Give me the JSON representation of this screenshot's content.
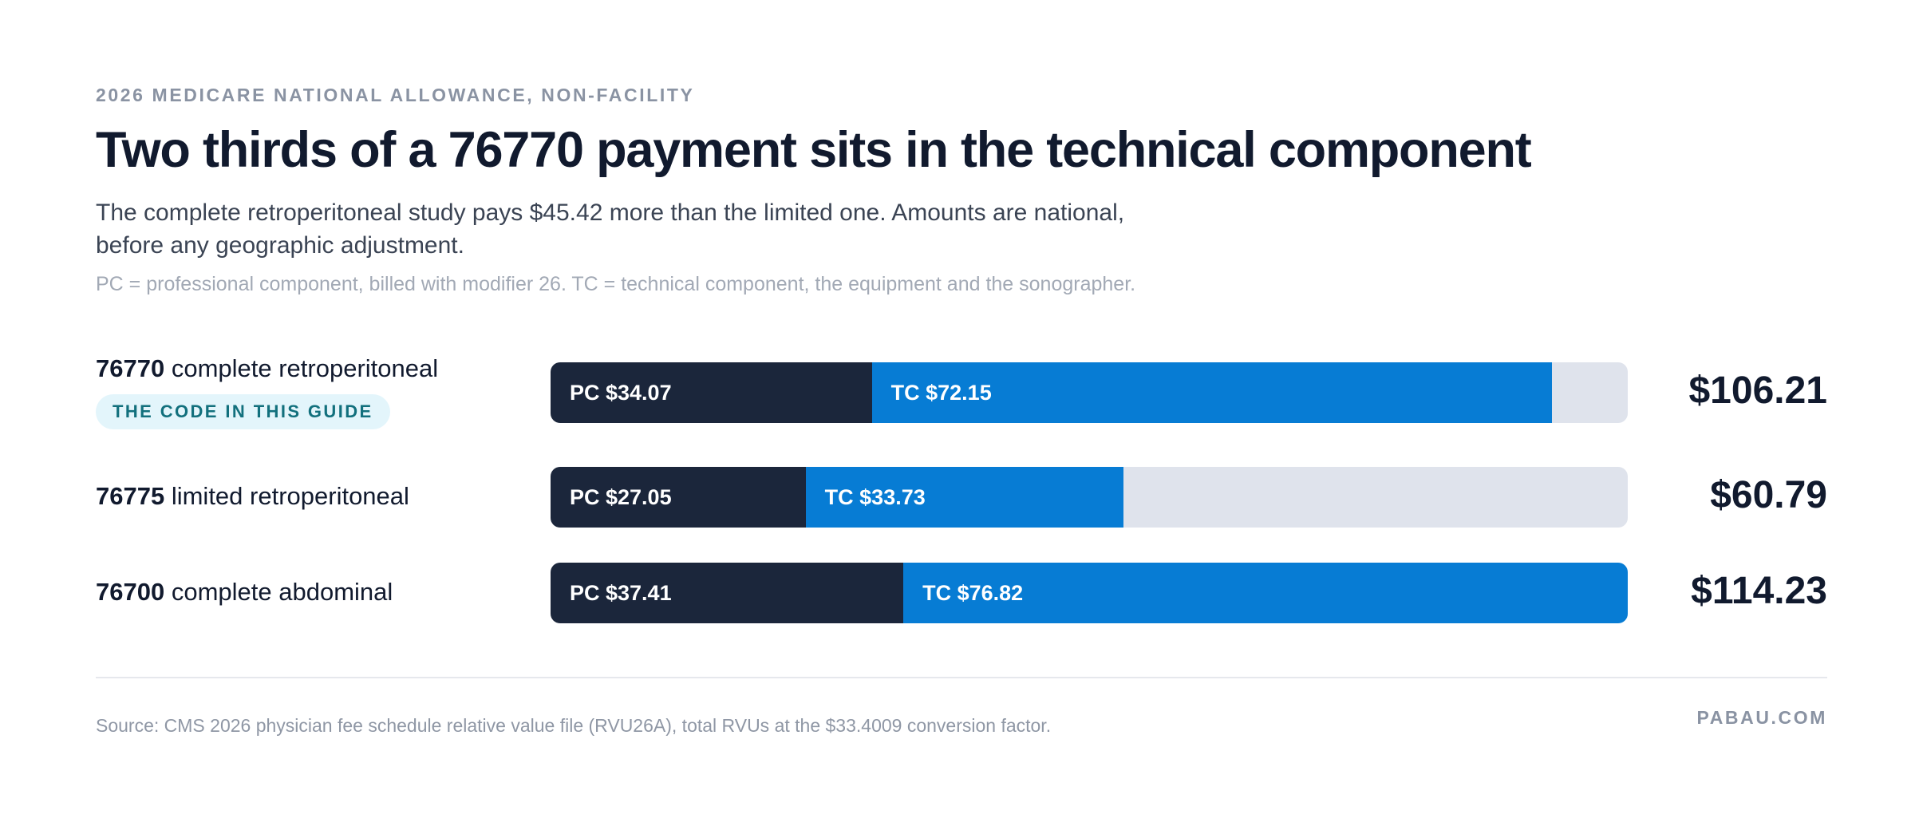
{
  "header": {
    "eyebrow": "2026 MEDICARE NATIONAL ALLOWANCE, NON-FACILITY",
    "title": "Two thirds of a 76770 payment sits in the technical component",
    "subtitle": "The complete retroperitoneal study pays $45.42 more than the limited one. Amounts are national, before any geographic adjustment.",
    "note": "PC = professional component, billed with modifier 26. TC = technical component, the equipment and the sonographer."
  },
  "chart_data": {
    "type": "bar",
    "orientation": "horizontal",
    "stacked": true,
    "xlim": [
      0,
      114.23
    ],
    "categories": [
      "76770",
      "76775",
      "76700"
    ],
    "rows": [
      {
        "code": "76770",
        "desc": " complete retroperitoneal",
        "badge": "THE CODE IN THIS GUIDE",
        "pc": 34.07,
        "tc": 72.15,
        "pc_label": "PC $34.07",
        "tc_label": "TC $72.15",
        "total": 106.21,
        "total_label": "$106.21"
      },
      {
        "code": "76775",
        "desc": " limited retroperitoneal",
        "pc": 27.05,
        "tc": 33.73,
        "pc_label": "PC $27.05",
        "tc_label": "TC $33.73",
        "total": 60.79,
        "total_label": "$60.79"
      },
      {
        "code": "76700",
        "desc": " complete abdominal",
        "pc": 37.41,
        "tc": 76.82,
        "pc_label": "PC $37.41",
        "tc_label": "TC $76.82",
        "total": 114.23,
        "total_label": "$114.23"
      }
    ],
    "colors": {
      "pc": "#1b263b",
      "tc": "#077cd4",
      "track": "#dfe3ec",
      "badge_bg": "#e3f5fb",
      "badge_text": "#12707d"
    }
  },
  "footer": {
    "source": "Source: CMS 2026 physician fee schedule relative value file (RVU26A), total RVUs at the $33.4009 conversion factor.",
    "brand": "PABAU.COM"
  }
}
